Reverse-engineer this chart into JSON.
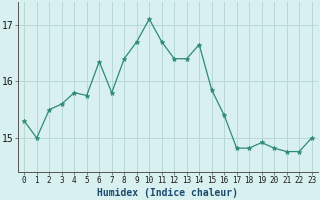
{
  "x": [
    0,
    1,
    2,
    3,
    4,
    5,
    6,
    7,
    8,
    9,
    10,
    11,
    12,
    13,
    14,
    15,
    16,
    17,
    18,
    19,
    20,
    21,
    22,
    23
  ],
  "y": [
    15.3,
    15.0,
    15.5,
    15.6,
    15.8,
    15.75,
    16.35,
    15.8,
    16.4,
    16.7,
    17.1,
    16.7,
    16.4,
    16.4,
    16.65,
    15.85,
    15.4,
    14.82,
    14.82,
    14.92,
    14.82,
    14.76,
    14.76,
    15.0
  ],
  "line_color": "#2e8b74",
  "marker": "*",
  "marker_size": 3.5,
  "bg_color": "#d8f0f0",
  "grid_color": "#b8d8d8",
  "xlabel": "Humidex (Indice chaleur)",
  "xlabel_fontsize": 7,
  "xlabel_fontweight": "bold",
  "yticks": [
    15,
    16,
    17
  ],
  "ytick_fontsize": 7,
  "xtick_labels": [
    "0",
    "1",
    "2",
    "3",
    "4",
    "5",
    "6",
    "7",
    "8",
    "9",
    "10",
    "11",
    "12",
    "13",
    "14",
    "15",
    "16",
    "17",
    "18",
    "19",
    "20",
    "21",
    "22",
    "23"
  ],
  "xtick_fontsize": 5.5,
  "ylim": [
    14.4,
    17.4
  ],
  "xlim": [
    -0.5,
    23.5
  ],
  "line_width": 0.9
}
